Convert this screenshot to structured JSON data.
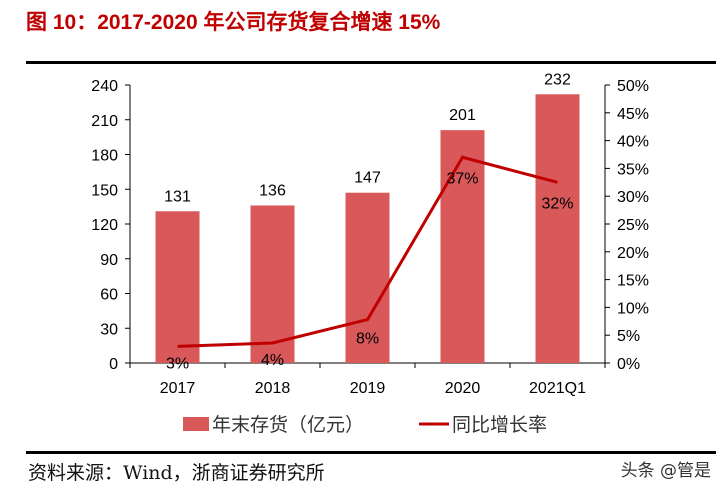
{
  "title": "图 10：2017-2020 年公司存货复合增速 15%",
  "source": "资料来源：Wind，浙商证券研究所",
  "watermark": "头条 @管是",
  "colors": {
    "bar": "#D9585A",
    "line": "#C00000",
    "title": "#C00000"
  },
  "chart_data": {
    "type": "bar+line",
    "categories": [
      "2017",
      "2018",
      "2019",
      "2020",
      "2021Q1"
    ],
    "series": [
      {
        "name": "年末存货（亿元）",
        "type": "bar",
        "axis": "left",
        "values": [
          131,
          136,
          147,
          201,
          232
        ],
        "labels": [
          "131",
          "136",
          "147",
          "201",
          "232"
        ]
      },
      {
        "name": "同比增长率",
        "type": "line",
        "axis": "right",
        "values": [
          3,
          3.6,
          7.8,
          37,
          32.5
        ],
        "labels": [
          "3%",
          "4%",
          "8%",
          "37%",
          "32%"
        ]
      }
    ],
    "left_axis": {
      "range": [
        0,
        240
      ],
      "ticks": [
        "0",
        "30",
        "60",
        "90",
        "120",
        "150",
        "180",
        "210",
        "240"
      ]
    },
    "right_axis": {
      "range": [
        0,
        50
      ],
      "unit": "%",
      "ticks": [
        "0%",
        "5%",
        "10%",
        "15%",
        "20%",
        "25%",
        "30%",
        "35%",
        "40%",
        "45%",
        "50%"
      ]
    },
    "legend_position": "bottom",
    "grid": false
  }
}
